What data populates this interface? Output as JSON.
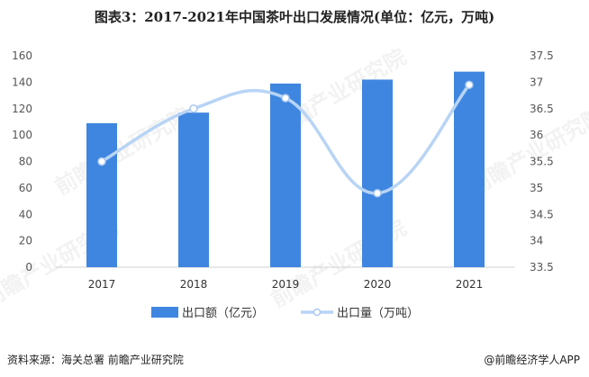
{
  "chart_data": {
    "type": "bar",
    "title": "图表3：2017-2021年中国茶叶出口发展情况(单位：亿元，万吨)",
    "categories": [
      "2017",
      "2018",
      "2019",
      "2020",
      "2021"
    ],
    "series": [
      {
        "name": "出口额（亿元）",
        "type": "bar",
        "axis": "left",
        "color": "#3f86e0",
        "values": [
          109,
          117,
          139,
          142,
          148
        ]
      },
      {
        "name": "出口量（万吨）",
        "type": "line",
        "axis": "right",
        "color": "#b8d4f5",
        "values": [
          35.5,
          36.5,
          36.7,
          34.9,
          36.95
        ]
      }
    ],
    "y_left": {
      "min": 0,
      "max": 160,
      "ticks": [
        "0",
        "20",
        "40",
        "60",
        "80",
        "100",
        "120",
        "140",
        "160"
      ]
    },
    "y_right": {
      "min": 33.5,
      "max": 37.5,
      "ticks": [
        "33.5",
        "34",
        "34.5",
        "35",
        "35.5",
        "36",
        "36.5",
        "37",
        "37.5"
      ]
    },
    "legend_position": "bottom",
    "grid": false
  },
  "footer": {
    "source": "资料来源：海关总署 前瞻产业研究院",
    "credit": "@前瞻经济学人APP"
  },
  "watermark": {
    "text": "前瞻产业研究院"
  }
}
